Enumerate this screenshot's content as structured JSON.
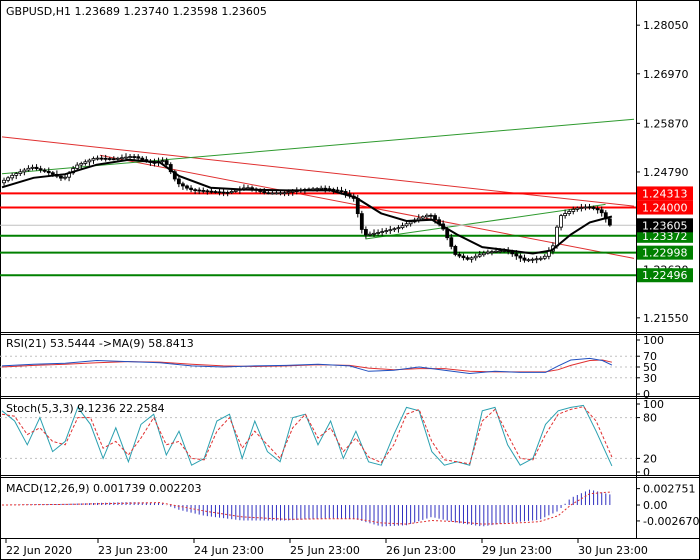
{
  "main_header": "GBPUSD,H1  1.23689 1.23740 1.23598 1.23605",
  "rsi_header": "RSI(21) 53.5444  ->MA(9) 58.8413",
  "stoch_header": "Stoch(5,3,3) 9.1236 22.2584",
  "macd_header": "MACD(12,26,9) 0.001739 0.002203",
  "colors": {
    "bull": "#3a3a3a",
    "bear": "#3a3a3a",
    "ma": "#000000",
    "resistance": "#ff0000",
    "support": "#008000",
    "trend_red": "#e03030",
    "trend_green": "#2e9a2e",
    "rsi": "#2050c0",
    "rsi_ma": "#e03030",
    "stoch_k": "#2aa0b0",
    "stoch_d": "#e03030",
    "macd_hist": "#3030c0",
    "macd_signal": "#e03030",
    "current_price_bg": "#000000",
    "current_price_fg": "#ffffff"
  },
  "chart_data": [
    {
      "type": "candlestick",
      "ylim": [
        1.2128,
        1.2852
      ],
      "yticks": [
        "1.28050",
        "1.26970",
        "1.25870",
        "1.24790",
        "1.22620",
        "1.21550"
      ],
      "xticks": [
        "22 Jun 2020",
        "23 Jun 23:00",
        "24 Jun 23:00",
        "25 Jun 23:00",
        "26 Jun 23:00",
        "29 Jun 23:00",
        "30 Jun 23:00"
      ],
      "current_price": "1.23605",
      "price_level": 1.23605,
      "levels": [
        {
          "label": "1.24313",
          "value": 1.24313,
          "kind": "resistance"
        },
        {
          "label": "1.24000",
          "value": 1.24,
          "kind": "resistance"
        },
        {
          "label": "1.23372",
          "value": 1.23372,
          "kind": "support"
        },
        {
          "label": "1.22998",
          "value": 1.22998,
          "kind": "support"
        },
        {
          "label": "1.22496",
          "value": 1.22496,
          "kind": "support"
        }
      ],
      "trendlines": [
        {
          "kind": "red",
          "from": [
            0,
            1.2557
          ],
          "to": [
            1,
            1.2403
          ]
        },
        {
          "kind": "red",
          "from": [
            0.155,
            1.2516
          ],
          "to": [
            1,
            1.2287
          ]
        },
        {
          "kind": "green",
          "from": [
            0,
            1.2475
          ],
          "to": [
            1,
            1.2596
          ]
        },
        {
          "kind": "green",
          "from": [
            0.575,
            1.233
          ],
          "to": [
            0.955,
            1.2407
          ]
        }
      ],
      "price_path": [
        [
          0.0,
          1.2455
        ],
        [
          0.02,
          1.2472
        ],
        [
          0.05,
          1.249
        ],
        [
          0.08,
          1.2476
        ],
        [
          0.1,
          1.2463
        ],
        [
          0.12,
          1.2493
        ],
        [
          0.15,
          1.251
        ],
        [
          0.18,
          1.2508
        ],
        [
          0.21,
          1.2514
        ],
        [
          0.24,
          1.2499
        ],
        [
          0.26,
          1.2505
        ],
        [
          0.28,
          1.2455
        ],
        [
          0.3,
          1.244
        ],
        [
          0.33,
          1.2436
        ],
        [
          0.36,
          1.2433
        ],
        [
          0.39,
          1.2445
        ],
        [
          0.42,
          1.2432
        ],
        [
          0.45,
          1.2433
        ],
        [
          0.48,
          1.244
        ],
        [
          0.51,
          1.2443
        ],
        [
          0.54,
          1.2436
        ],
        [
          0.56,
          1.242
        ],
        [
          0.575,
          1.2338
        ],
        [
          0.6,
          1.2345
        ],
        [
          0.63,
          1.2355
        ],
        [
          0.66,
          1.2375
        ],
        [
          0.68,
          1.2385
        ],
        [
          0.7,
          1.2356
        ],
        [
          0.72,
          1.2296
        ],
        [
          0.74,
          1.2285
        ],
        [
          0.77,
          1.2301
        ],
        [
          0.8,
          1.2305
        ],
        [
          0.83,
          1.2283
        ],
        [
          0.86,
          1.2288
        ],
        [
          0.875,
          1.2315
        ],
        [
          0.885,
          1.238
        ],
        [
          0.91,
          1.2398
        ],
        [
          0.93,
          1.2402
        ],
        [
          0.95,
          1.2393
        ],
        [
          0.965,
          1.2361
        ]
      ],
      "ma_path": [
        [
          0.0,
          1.2445
        ],
        [
          0.05,
          1.2466
        ],
        [
          0.1,
          1.2474
        ],
        [
          0.15,
          1.2495
        ],
        [
          0.2,
          1.2506
        ],
        [
          0.25,
          1.25
        ],
        [
          0.28,
          1.247
        ],
        [
          0.33,
          1.2444
        ],
        [
          0.38,
          1.244
        ],
        [
          0.45,
          1.2438
        ],
        [
          0.52,
          1.2438
        ],
        [
          0.56,
          1.2422
        ],
        [
          0.6,
          1.2387
        ],
        [
          0.64,
          1.237
        ],
        [
          0.68,
          1.2373
        ],
        [
          0.72,
          1.234
        ],
        [
          0.76,
          1.2312
        ],
        [
          0.8,
          1.2305
        ],
        [
          0.84,
          1.2298
        ],
        [
          0.87,
          1.2305
        ],
        [
          0.9,
          1.234
        ],
        [
          0.93,
          1.2367
        ],
        [
          0.965,
          1.238
        ]
      ]
    },
    {
      "type": "line",
      "ylim": [
        0,
        100
      ],
      "yticks": [
        "100",
        "70",
        "50",
        "30",
        "0"
      ],
      "series": [
        {
          "kind": "rsi",
          "values": [
            [
              0,
              52
            ],
            [
              0.05,
              55
            ],
            [
              0.1,
              57
            ],
            [
              0.15,
              62
            ],
            [
              0.2,
              60
            ],
            [
              0.25,
              58
            ],
            [
              0.3,
              52
            ],
            [
              0.35,
              50
            ],
            [
              0.4,
              52
            ],
            [
              0.45,
              53
            ],
            [
              0.5,
              55
            ],
            [
              0.55,
              52
            ],
            [
              0.58,
              42
            ],
            [
              0.62,
              44
            ],
            [
              0.66,
              50
            ],
            [
              0.7,
              44
            ],
            [
              0.74,
              38
            ],
            [
              0.78,
              42
            ],
            [
              0.82,
              40
            ],
            [
              0.86,
              40
            ],
            [
              0.88,
              52
            ],
            [
              0.9,
              63
            ],
            [
              0.93,
              66
            ],
            [
              0.95,
              62
            ],
            [
              0.965,
              53.5
            ]
          ]
        },
        {
          "kind": "rsi_ma",
          "values": [
            [
              0,
              50
            ],
            [
              0.05,
              53
            ],
            [
              0.1,
              55
            ],
            [
              0.15,
              58
            ],
            [
              0.2,
              60
            ],
            [
              0.25,
              59
            ],
            [
              0.3,
              55
            ],
            [
              0.35,
              52
            ],
            [
              0.4,
              51
            ],
            [
              0.45,
              52
            ],
            [
              0.5,
              54
            ],
            [
              0.55,
              53
            ],
            [
              0.58,
              48
            ],
            [
              0.62,
              45
            ],
            [
              0.66,
              47
            ],
            [
              0.7,
              47
            ],
            [
              0.74,
              42
            ],
            [
              0.78,
              41
            ],
            [
              0.82,
              41
            ],
            [
              0.86,
              41
            ],
            [
              0.88,
              45
            ],
            [
              0.9,
              53
            ],
            [
              0.93,
              62
            ],
            [
              0.95,
              63
            ],
            [
              0.965,
              58.8
            ]
          ]
        }
      ]
    },
    {
      "type": "line",
      "ylim": [
        0,
        100
      ],
      "yticks": [
        "100",
        "80",
        "20",
        "0"
      ],
      "series": [
        {
          "kind": "stoch_k",
          "values": [
            [
              0,
              90
            ],
            [
              0.02,
              75
            ],
            [
              0.04,
              40
            ],
            [
              0.06,
              80
            ],
            [
              0.08,
              30
            ],
            [
              0.1,
              45
            ],
            [
              0.12,
              95
            ],
            [
              0.14,
              70
            ],
            [
              0.16,
              20
            ],
            [
              0.18,
              65
            ],
            [
              0.2,
              15
            ],
            [
              0.22,
              70
            ],
            [
              0.24,
              85
            ],
            [
              0.26,
              25
            ],
            [
              0.28,
              60
            ],
            [
              0.3,
              10
            ],
            [
              0.32,
              20
            ],
            [
              0.34,
              75
            ],
            [
              0.36,
              85
            ],
            [
              0.38,
              20
            ],
            [
              0.4,
              75
            ],
            [
              0.42,
              30
            ],
            [
              0.44,
              15
            ],
            [
              0.46,
              80
            ],
            [
              0.48,
              85
            ],
            [
              0.5,
              40
            ],
            [
              0.52,
              75
            ],
            [
              0.54,
              20
            ],
            [
              0.56,
              60
            ],
            [
              0.58,
              15
            ],
            [
              0.6,
              10
            ],
            [
              0.62,
              55
            ],
            [
              0.64,
              95
            ],
            [
              0.66,
              90
            ],
            [
              0.68,
              30
            ],
            [
              0.7,
              10
            ],
            [
              0.72,
              15
            ],
            [
              0.74,
              10
            ],
            [
              0.76,
              90
            ],
            [
              0.78,
              95
            ],
            [
              0.8,
              40
            ],
            [
              0.82,
              10
            ],
            [
              0.84,
              20
            ],
            [
              0.86,
              70
            ],
            [
              0.88,
              90
            ],
            [
              0.9,
              95
            ],
            [
              0.92,
              98
            ],
            [
              0.94,
              60
            ],
            [
              0.965,
              9
            ]
          ]
        },
        {
          "kind": "stoch_d",
          "values": [
            [
              0,
              85
            ],
            [
              0.02,
              82
            ],
            [
              0.04,
              55
            ],
            [
              0.06,
              65
            ],
            [
              0.08,
              45
            ],
            [
              0.1,
              40
            ],
            [
              0.12,
              80
            ],
            [
              0.14,
              80
            ],
            [
              0.16,
              35
            ],
            [
              0.18,
              45
            ],
            [
              0.2,
              25
            ],
            [
              0.22,
              50
            ],
            [
              0.24,
              80
            ],
            [
              0.26,
              40
            ],
            [
              0.28,
              45
            ],
            [
              0.3,
              20
            ],
            [
              0.32,
              18
            ],
            [
              0.34,
              60
            ],
            [
              0.36,
              80
            ],
            [
              0.38,
              35
            ],
            [
              0.4,
              60
            ],
            [
              0.42,
              40
            ],
            [
              0.44,
              20
            ],
            [
              0.46,
              65
            ],
            [
              0.48,
              85
            ],
            [
              0.5,
              50
            ],
            [
              0.52,
              65
            ],
            [
              0.54,
              30
            ],
            [
              0.56,
              50
            ],
            [
              0.58,
              22
            ],
            [
              0.6,
              14
            ],
            [
              0.62,
              40
            ],
            [
              0.64,
              85
            ],
            [
              0.66,
              92
            ],
            [
              0.68,
              45
            ],
            [
              0.7,
              18
            ],
            [
              0.72,
              15
            ],
            [
              0.74,
              12
            ],
            [
              0.76,
              75
            ],
            [
              0.78,
              92
            ],
            [
              0.8,
              55
            ],
            [
              0.82,
              20
            ],
            [
              0.84,
              18
            ],
            [
              0.86,
              55
            ],
            [
              0.88,
              85
            ],
            [
              0.9,
              92
            ],
            [
              0.92,
              96
            ],
            [
              0.94,
              75
            ],
            [
              0.965,
              22
            ]
          ]
        }
      ]
    },
    {
      "type": "bar",
      "ylim": [
        -0.0052,
        0.0042
      ],
      "yticks": [
        "0.002751",
        "0.00",
        "-0.002670"
      ],
      "histogram": [
        [
          0,
          0.0
        ],
        [
          0.1,
          0.0002
        ],
        [
          0.2,
          0.0005
        ],
        [
          0.25,
          0.0004
        ],
        [
          0.28,
          -0.0008
        ],
        [
          0.32,
          -0.0018
        ],
        [
          0.38,
          -0.0026
        ],
        [
          0.45,
          -0.0026
        ],
        [
          0.52,
          -0.0022
        ],
        [
          0.56,
          -0.0024
        ],
        [
          0.6,
          -0.0036
        ],
        [
          0.64,
          -0.0034
        ],
        [
          0.68,
          -0.002
        ],
        [
          0.72,
          -0.003
        ],
        [
          0.76,
          -0.0036
        ],
        [
          0.8,
          -0.003
        ],
        [
          0.85,
          -0.0025
        ],
        [
          0.88,
          -0.001
        ],
        [
          0.9,
          0.0012
        ],
        [
          0.93,
          0.0026
        ],
        [
          0.965,
          0.0017
        ]
      ],
      "signal": [
        [
          0,
          0.0
        ],
        [
          0.1,
          0.0001
        ],
        [
          0.2,
          0.0003
        ],
        [
          0.25,
          0.0004
        ],
        [
          0.28,
          -0.0002
        ],
        [
          0.32,
          -0.001
        ],
        [
          0.38,
          -0.002
        ],
        [
          0.45,
          -0.0024
        ],
        [
          0.52,
          -0.0023
        ],
        [
          0.56,
          -0.0023
        ],
        [
          0.6,
          -0.003
        ],
        [
          0.64,
          -0.0032
        ],
        [
          0.68,
          -0.0026
        ],
        [
          0.72,
          -0.0028
        ],
        [
          0.76,
          -0.0032
        ],
        [
          0.8,
          -0.0031
        ],
        [
          0.85,
          -0.0028
        ],
        [
          0.88,
          -0.0018
        ],
        [
          0.9,
          0.0
        ],
        [
          0.93,
          0.0019
        ],
        [
          0.965,
          0.0022
        ]
      ]
    }
  ]
}
